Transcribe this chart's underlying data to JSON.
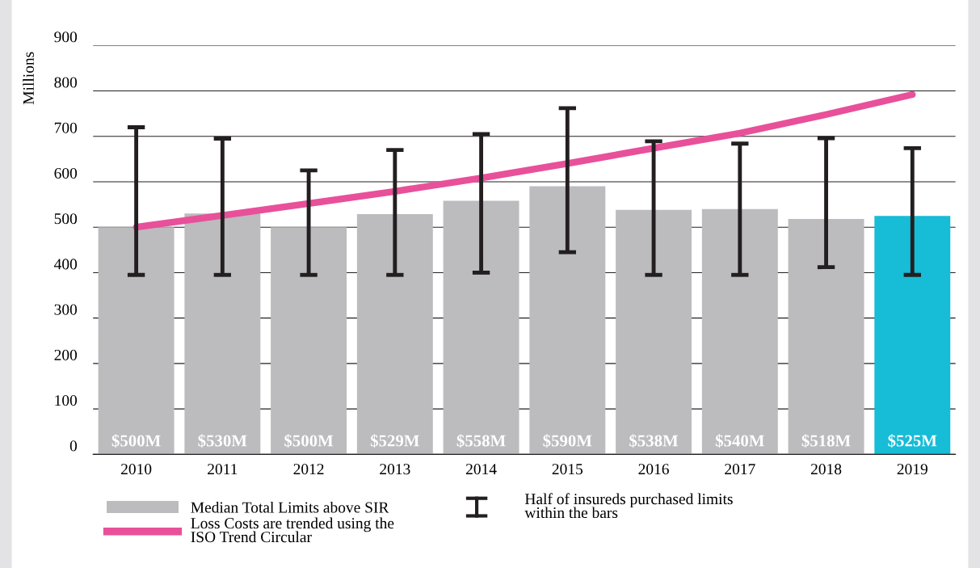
{
  "chart_data": {
    "type": "bar",
    "ylabel": "Millions",
    "categories": [
      "2010",
      "2011",
      "2012",
      "2013",
      "2014",
      "2015",
      "2016",
      "2017",
      "2018",
      "2019"
    ],
    "series": [
      {
        "name": "Median Total Limits above SIR",
        "color": "#bcbbbd",
        "colors": [
          "#bcbbbd",
          "#bcbbbd",
          "#bcbbbd",
          "#bcbbbd",
          "#bcbbbd",
          "#bcbbbd",
          "#bcbbbd",
          "#bcbbbd",
          "#bcbbbd",
          "#17bcd6"
        ],
        "values": [
          500,
          530,
          500,
          529,
          558,
          590,
          538,
          540,
          518,
          525
        ],
        "value_labels": [
          "$500M",
          "$530M",
          "$500M",
          "$529M",
          "$558M",
          "$590M",
          "$538M",
          "$540M",
          "$518M",
          "$525M"
        ],
        "errors": [
          [
            395,
            720
          ],
          [
            395,
            695
          ],
          [
            395,
            625
          ],
          [
            395,
            670
          ],
          [
            400,
            705
          ],
          [
            445,
            762
          ],
          [
            395,
            689
          ],
          [
            395,
            684
          ],
          [
            412,
            696
          ],
          [
            395,
            674
          ]
        ]
      },
      {
        "name": "Loss Costs are trended using the\nISO Trend Circular",
        "type": "line",
        "color": "#e8509a",
        "values": [
          500,
          526,
          552,
          579,
          608,
          640,
          674,
          707,
          748,
          792
        ]
      }
    ],
    "annotations": [
      "Half of insureds purchased limits\nwithin the bars"
    ],
    "ylim": [
      0,
      900
    ],
    "yticks": [
      0,
      100,
      200,
      300,
      400,
      500,
      600,
      700,
      800,
      900
    ],
    "grid": "y",
    "legend": "bottom",
    "marker": "none",
    "line_style": "solid"
  }
}
